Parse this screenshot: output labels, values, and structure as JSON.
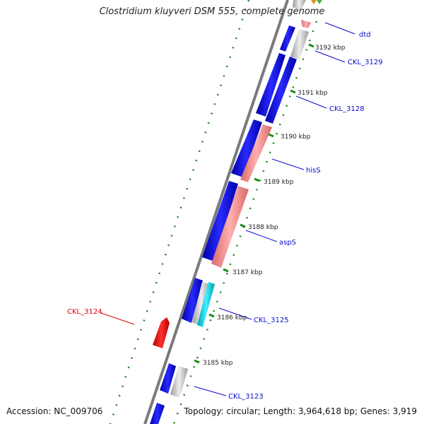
{
  "title": "Clostridium kluyveri DSM 555, complete genome",
  "accession": "Accession: NC_009706",
  "summary": "Topology: circular; Length: 3,964,618 bp; Genes: 3,919",
  "colors": {
    "forward_cds": "#1010e0",
    "reverse_cds": "#f08888",
    "other_gene": "#c8c8c8",
    "highlight_gene": "#ff1010",
    "backbone": "#808080",
    "tick": "#1a8a1a",
    "label_blue": "#0a0acc",
    "label_red": "#dd0000"
  },
  "scale": {
    "ticks": [
      {
        "label": "3192 kbp"
      },
      {
        "label": "3191 kbp"
      },
      {
        "label": "3190 kbp"
      },
      {
        "label": "3189 kbp"
      },
      {
        "label": "3188 kbp"
      },
      {
        "label": "3187 kbp"
      },
      {
        "label": "3186 kbp"
      },
      {
        "label": "3185 kbp"
      }
    ]
  },
  "gene_labels": [
    {
      "name": "dtd",
      "color": "blue"
    },
    {
      "name": "CKL_3129",
      "color": "blue"
    },
    {
      "name": "CKL_3128",
      "color": "blue"
    },
    {
      "name": "hisS",
      "color": "blue"
    },
    {
      "name": "aspS",
      "color": "blue"
    },
    {
      "name": "CKL_3125",
      "color": "blue"
    },
    {
      "name": "CKL_3124",
      "color": "red"
    },
    {
      "name": "CKL_3123",
      "color": "blue"
    }
  ]
}
